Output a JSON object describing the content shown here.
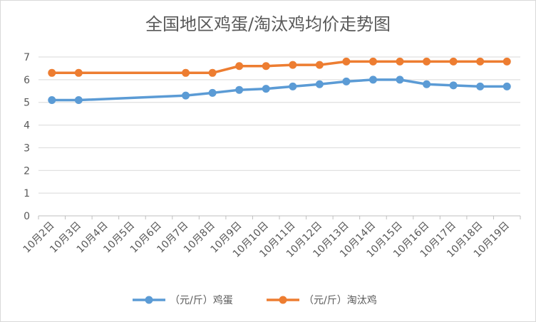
{
  "chart_data": {
    "type": "line",
    "title": "全国地区鸡蛋/淘汰鸡均价走势图",
    "xlabel": "",
    "ylabel": "",
    "ylim": [
      0,
      7
    ],
    "yticks": [
      0,
      1,
      2,
      3,
      4,
      5,
      6,
      7
    ],
    "grid": true,
    "legend_position": "bottom",
    "categories": [
      "10月2日",
      "10月3日",
      "10月4日",
      "10月5日",
      "10月6日",
      "10月7日",
      "10月8日",
      "10月9日",
      "10月10日",
      "10月11日",
      "10月12日",
      "10月13日",
      "10月14日",
      "10月15日",
      "10月16日",
      "10月17日",
      "10月18日",
      "10月19日"
    ],
    "series": [
      {
        "name": "（元/斤）鸡蛋",
        "color": "#5b9bd5",
        "values": [
          5.1,
          5.1,
          null,
          null,
          null,
          5.3,
          5.42,
          5.55,
          5.6,
          5.7,
          5.8,
          5.92,
          6.0,
          6.0,
          5.8,
          5.75,
          5.7,
          5.7
        ]
      },
      {
        "name": "（元/斤）淘汰鸡",
        "color": "#ed7d31",
        "values": [
          6.3,
          6.3,
          null,
          null,
          null,
          6.3,
          6.3,
          6.6,
          6.6,
          6.65,
          6.65,
          6.8,
          6.8,
          6.8,
          6.8,
          6.8,
          6.8,
          6.8
        ]
      }
    ]
  }
}
